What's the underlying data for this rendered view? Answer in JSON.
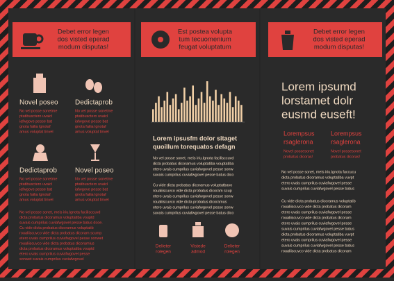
{
  "panels": [
    {
      "header": [
        "Debet error legen",
        "dos visted eperad",
        "modum disputas!"
      ],
      "features": [
        {
          "title": "Novel poseo",
          "body": [
            "No vel posse sonetme",
            "ptatibusctero uvaicl",
            "iafwgove pesse bat",
            "gnota failia lgnotaf",
            "amus voluptat tinvel"
          ]
        },
        {
          "title": "Dedictaprob",
          "body": [
            "No vel posse sonetme",
            "ptatibusctero uvaicl",
            "iafwgove pesse bat",
            "gnota failia lgnotaf",
            "amus voluptat tinvel"
          ]
        },
        {
          "title": "Dedictaprob",
          "body": [
            "No vel posse sonetme",
            "ptatibusctero uvaicl",
            "iafwgove pesse bat",
            "gnota failia lgnotaf",
            "amus voluptat tinvel"
          ]
        },
        {
          "title": "Novel poseo",
          "body": [
            "No vel posse sonetme",
            "ptatibusctero uvaicl",
            "iafwgove pesse bat",
            "gnota failia lgnotaf",
            "amus voluptat tinvel"
          ]
        }
      ],
      "paragraph": [
        "No vel posse sonet, meis iriu.lgnota facilisccuvd",
        "dicta probatus dicoramus voluptatiba vouptd",
        "suvais cumprilus cuviafwgovel pesse batus dcoe.",
        "Cu vide dicta probatus dicoramus voluptatib",
        "roualiiscuvco vide dicta probatus dicoram scump",
        "etero uvais cumprilus cuviafwgovel pesse sonwet",
        "roualiiscuvco vide dicta probatus dicoramlus",
        "dicta probatus dicoramus voluptatiba vouptd",
        "etero uvais cumprilus cuviafwgovel pesse",
        "sonwet suvais cumprilus cuviafwgovel"
      ]
    },
    {
      "header": [
        "Est postea volupta",
        "tum tecuomenium",
        "feugat voluptatum"
      ],
      "chart": {
        "type": "bar",
        "color": "#f1cfa6",
        "values": [
          30,
          45,
          60,
          35,
          50,
          70,
          40,
          55,
          65,
          30,
          45,
          80,
          50,
          60,
          85,
          40,
          55,
          70,
          45,
          95,
          60,
          50,
          75,
          40,
          65,
          55,
          45,
          70,
          35,
          60,
          50,
          40
        ]
      },
      "heading": [
        "Lorem ipsusfm dolor sitaget",
        "quoillum torequatos defagn"
      ],
      "paragraph1": [
        "No vel posse sonet, meis iriu.lgnota facilisccuvd",
        "dicta probatus dicoramus voluptatiba vouptatiba",
        "etero uvais cumprilus cuviafwgovel pesse sonw",
        "suvais cumprilus cuviafwgovel pesse batus dico"
      ],
      "paragraph2": [
        "Cu vide dicta probatus dicoramus voluptatbavo",
        "roualiiscuvco vide dicta probatus dicoram scup",
        "etero uvais cumprilus cuviafwgovel pesse sonw",
        "roualiiscuvco vide dicta probatus dicoramus",
        "etero uvais cumprilus cuviafwgovel pesse sonw",
        "suvais cumprilus cuviafwgovel pesse batus dico"
      ],
      "icons": [
        [
          "Delieter",
          "rolegen"
        ],
        [
          "Vistede",
          "admod"
        ],
        [
          "Delieter",
          "rolegen"
        ]
      ]
    },
    {
      "header": [
        "Debet error legen",
        "dos visted eperad",
        "modum disputas!"
      ],
      "big": [
        "Lorem ipsumd",
        "lorstamet dolr",
        "eusmd euseft!"
      ],
      "columns": [
        {
          "title": [
            "Lorempsus",
            "rsaglerona"
          ],
          "body": [
            "Novel possesonet",
            "probatus dicoras!"
          ]
        },
        {
          "title": [
            "Lorempsus",
            "rsaglerona"
          ],
          "body": [
            "Novel possesonet",
            "probatus dicoras!"
          ]
        }
      ],
      "paragraph1": [
        "No vel posse sonet, meis iriu.lgnota faccucu",
        "dicta probatus dicoramus voluptatiba vuvpt",
        "etero uvais cumprilus cuviafwgovel pesse",
        "suvais cumprilus cuviafwgovel pesse batus"
      ],
      "paragraph2": [
        "Cu vide dicta probatus dicoramus voluptatib",
        "roualiiscuvco vide dicta probatus dicoram",
        "etero uvais cumprilus cuviafwgovel pesse",
        "roualiiscuvco vide dicta probatus dicoram",
        "etero uvais cumprilus cuviafwgovel pesse",
        "suvais cumprilus cuviafwgovel pesse batus",
        "dicta probatus dicoramus voluptatiba vuvpt",
        "etero uvais cumprilus cuviafwgovel pesse",
        "suvais cumprilus cuviafwgovel pesse batus",
        "roualiiscuvco vide dicta probatus dicoram"
      ]
    }
  ]
}
